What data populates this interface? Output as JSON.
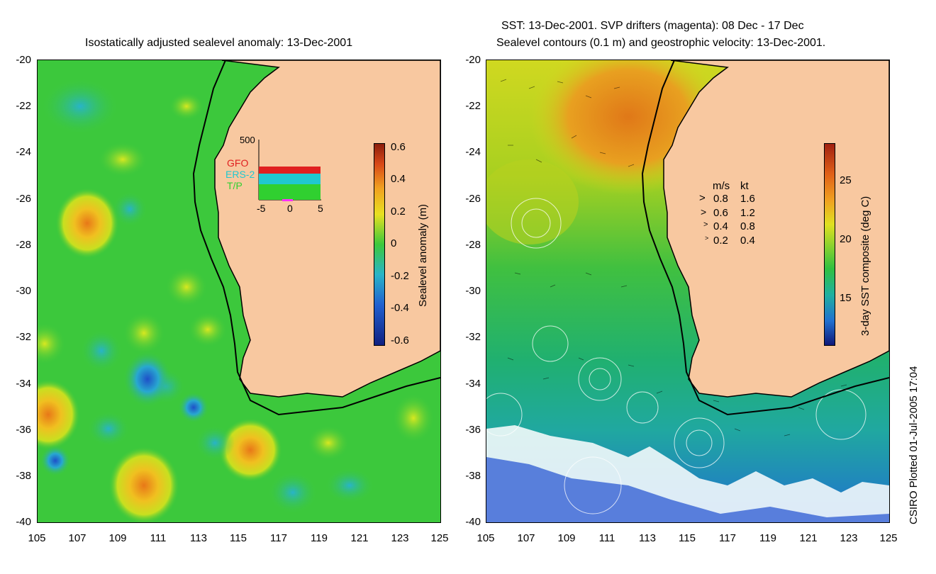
{
  "left_panel": {
    "title": "Isostatically adjusted sealevel anomaly: 13-Dec-2001",
    "colorbar": {
      "label": "Sealevel anomaly (m)",
      "ticks": [
        "0.6",
        "0.4",
        "0.2",
        "0",
        "-0.2",
        "-0.4",
        "-0.6"
      ]
    },
    "inset": {
      "ymax_label": "500",
      "legend": [
        {
          "name": "GFO",
          "color": "#e02020"
        },
        {
          "name": "ERS-2",
          "color": "#20c8d0"
        },
        {
          "name": "T/P",
          "color": "#30d030"
        }
      ],
      "x_ticks": [
        "-5",
        "0",
        "5"
      ]
    }
  },
  "right_panel": {
    "title_line1": "SST: 13-Dec-2001. SVP drifters (magenta): 08 Dec - 17 Dec",
    "title_line2": "Sealevel contours (0.1 m) and geostrophic velocity: 13-Dec-2001.",
    "colorbar": {
      "label": "3-day SST composite (deg C)",
      "ticks": [
        "25",
        "20",
        "15"
      ]
    },
    "velocity_legend": {
      "header_ms": "m/s",
      "header_kt": "kt",
      "rows": [
        {
          "ms": "0.8",
          "kt": "1.6"
        },
        {
          "ms": "0.6",
          "kt": "1.2"
        },
        {
          "ms": "0.4",
          "kt": "0.8"
        },
        {
          "ms": "0.2",
          "kt": "0.4"
        }
      ]
    }
  },
  "axes": {
    "y_ticks": [
      "-20",
      "-22",
      "-24",
      "-26",
      "-28",
      "-30",
      "-32",
      "-34",
      "-36",
      "-38",
      "-40"
    ],
    "x_ticks": [
      "105",
      "107",
      "109",
      "111",
      "113",
      "115",
      "117",
      "119",
      "121",
      "123",
      "125"
    ]
  },
  "credit": "CSIRO Plotted 01-Jul-2005 17:04",
  "colors": {
    "land": "#f8c8a0",
    "ocean_left": "#3cc83c",
    "coast": "#000000"
  }
}
